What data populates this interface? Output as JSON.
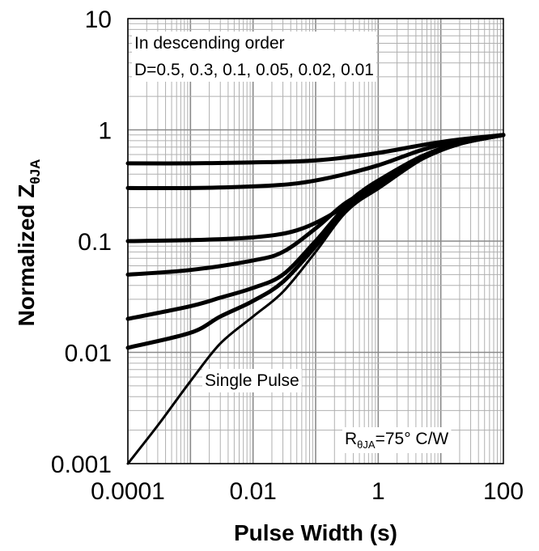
{
  "chart_data": {
    "type": "line",
    "title": "",
    "xlabel": "Pulse Width (s)",
    "ylabel": {
      "prefix": "Normalized  Z",
      "subscript": "θJA"
    },
    "xscale": "log",
    "yscale": "log",
    "xlim": [
      0.0001,
      100
    ],
    "ylim": [
      0.001,
      10
    ],
    "grid": true,
    "x_ticks": [
      "0.0001",
      "0.01",
      "1",
      "100"
    ],
    "y_ticks": [
      "0.001",
      "0.01",
      "0.1",
      "1",
      "10"
    ],
    "annotations": {
      "order_line1": "In descending order",
      "order_line2": "D=0.5, 0.3, 0.1, 0.05, 0.02, 0.01",
      "single_pulse": "Single Pulse",
      "r_prefix": "R",
      "r_sub": "θJA",
      "r_suffix": "=75°  C/W"
    },
    "series": [
      {
        "label": "D=0.5",
        "x": [
          0.0001,
          0.001,
          0.01,
          0.05,
          0.2,
          1,
          5,
          20,
          100
        ],
        "y": [
          0.5,
          0.5,
          0.51,
          0.52,
          0.55,
          0.62,
          0.73,
          0.82,
          0.9
        ]
      },
      {
        "label": "D=0.3",
        "x": [
          0.0001,
          0.001,
          0.01,
          0.05,
          0.2,
          1,
          5,
          20,
          100
        ],
        "y": [
          0.3,
          0.3,
          0.31,
          0.33,
          0.38,
          0.48,
          0.66,
          0.8,
          0.9
        ]
      },
      {
        "label": "D=0.1",
        "x": [
          0.0001,
          0.001,
          0.01,
          0.05,
          0.2,
          0.5,
          1,
          5,
          20,
          100
        ],
        "y": [
          0.1,
          0.102,
          0.108,
          0.125,
          0.18,
          0.27,
          0.35,
          0.58,
          0.76,
          0.9
        ]
      },
      {
        "label": "D=0.05",
        "x": [
          0.0001,
          0.001,
          0.01,
          0.03,
          0.1,
          0.3,
          1,
          5,
          20,
          100
        ],
        "y": [
          0.05,
          0.055,
          0.067,
          0.08,
          0.13,
          0.22,
          0.32,
          0.55,
          0.75,
          0.9
        ]
      },
      {
        "label": "D=0.02",
        "x": [
          0.0001,
          0.001,
          0.003,
          0.01,
          0.03,
          0.1,
          0.3,
          1,
          5,
          20,
          100
        ],
        "y": [
          0.02,
          0.026,
          0.031,
          0.038,
          0.05,
          0.1,
          0.2,
          0.3,
          0.55,
          0.75,
          0.9
        ]
      },
      {
        "label": "D=0.01",
        "x": [
          0.0001,
          0.001,
          0.003,
          0.01,
          0.03,
          0.1,
          0.3,
          1,
          5,
          20,
          100
        ],
        "y": [
          0.011,
          0.015,
          0.021,
          0.029,
          0.043,
          0.09,
          0.19,
          0.3,
          0.55,
          0.75,
          0.9
        ]
      },
      {
        "label": "Single Pulse",
        "x": [
          0.0001,
          0.0003,
          0.001,
          0.003,
          0.01,
          0.03,
          0.1,
          0.3,
          1,
          5,
          20,
          100
        ],
        "y": [
          0.001,
          0.0022,
          0.0055,
          0.012,
          0.021,
          0.035,
          0.08,
          0.18,
          0.3,
          0.55,
          0.75,
          0.9
        ]
      }
    ]
  }
}
